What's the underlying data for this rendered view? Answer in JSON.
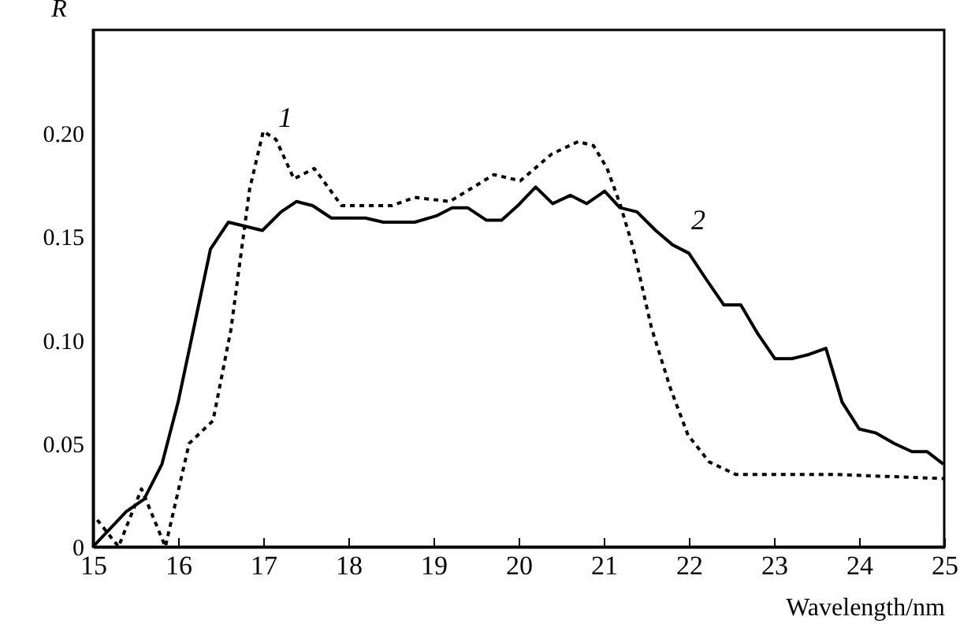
{
  "chart_data": {
    "type": "line",
    "xlabel": "Wavelength/nm",
    "ylabel": "R",
    "xlim": [
      15,
      25
    ],
    "ylim": [
      0,
      0.25
    ],
    "xticks": [
      15,
      16,
      17,
      18,
      19,
      20,
      21,
      22,
      23,
      24,
      25
    ],
    "yticks": [
      0,
      0.05,
      {
        "value": 0.1,
        "label": "0.10"
      },
      {
        "value": 0.15,
        "label": "0.15"
      },
      {
        "value": 0.2,
        "label": "0.20"
      }
    ],
    "grid": false,
    "legend": false,
    "marker": "none",
    "series": [
      {
        "name": "1",
        "color": "#000000",
        "line_style": "dotted",
        "x": [
          15.05,
          15.3,
          15.57,
          15.85,
          16.13,
          16.41,
          16.62,
          16.84,
          17.0,
          17.15,
          17.36,
          17.6,
          17.92,
          18.17,
          18.51,
          18.78,
          19.19,
          19.71,
          20.02,
          20.39,
          20.7,
          20.88,
          21.04,
          21.19,
          21.35,
          21.56,
          21.78,
          21.99,
          22.24,
          22.55,
          23.1,
          23.72,
          24.34,
          24.99
        ],
        "values": [
          0.013,
          0.0,
          0.028,
          0.0,
          0.05,
          0.061,
          0.105,
          0.173,
          0.201,
          0.197,
          0.178,
          0.183,
          0.165,
          0.165,
          0.165,
          0.169,
          0.167,
          0.18,
          0.177,
          0.19,
          0.196,
          0.194,
          0.183,
          0.166,
          0.144,
          0.106,
          0.077,
          0.054,
          0.041,
          0.035,
          0.035,
          0.035,
          0.034,
          0.033
        ]
      },
      {
        "name": "2",
        "color": "#000000",
        "line_style": "solid",
        "x": [
          15.0,
          15.39,
          15.6,
          15.81,
          16.0,
          16.19,
          16.38,
          16.59,
          16.99,
          17.21,
          17.39,
          17.58,
          17.8,
          18.2,
          18.41,
          18.78,
          19.03,
          19.22,
          19.4,
          19.62,
          19.8,
          19.99,
          20.2,
          20.4,
          20.61,
          20.8,
          21.01,
          21.19,
          21.39,
          21.61,
          21.81,
          22.0,
          22.21,
          22.41,
          22.61,
          22.81,
          23.01,
          23.21,
          23.41,
          23.61,
          23.8,
          24.0,
          24.2,
          24.41,
          24.62,
          24.8,
          24.99
        ],
        "values": [
          0.0,
          0.017,
          0.023,
          0.04,
          0.07,
          0.107,
          0.144,
          0.157,
          0.153,
          0.162,
          0.167,
          0.165,
          0.159,
          0.159,
          0.157,
          0.157,
          0.16,
          0.164,
          0.164,
          0.158,
          0.158,
          0.165,
          0.174,
          0.166,
          0.17,
          0.166,
          0.172,
          0.164,
          0.162,
          0.153,
          0.146,
          0.142,
          0.129,
          0.117,
          0.117,
          0.103,
          0.091,
          0.091,
          0.093,
          0.096,
          0.07,
          0.057,
          0.055,
          0.05,
          0.046,
          0.046,
          0.04
        ]
      }
    ]
  }
}
